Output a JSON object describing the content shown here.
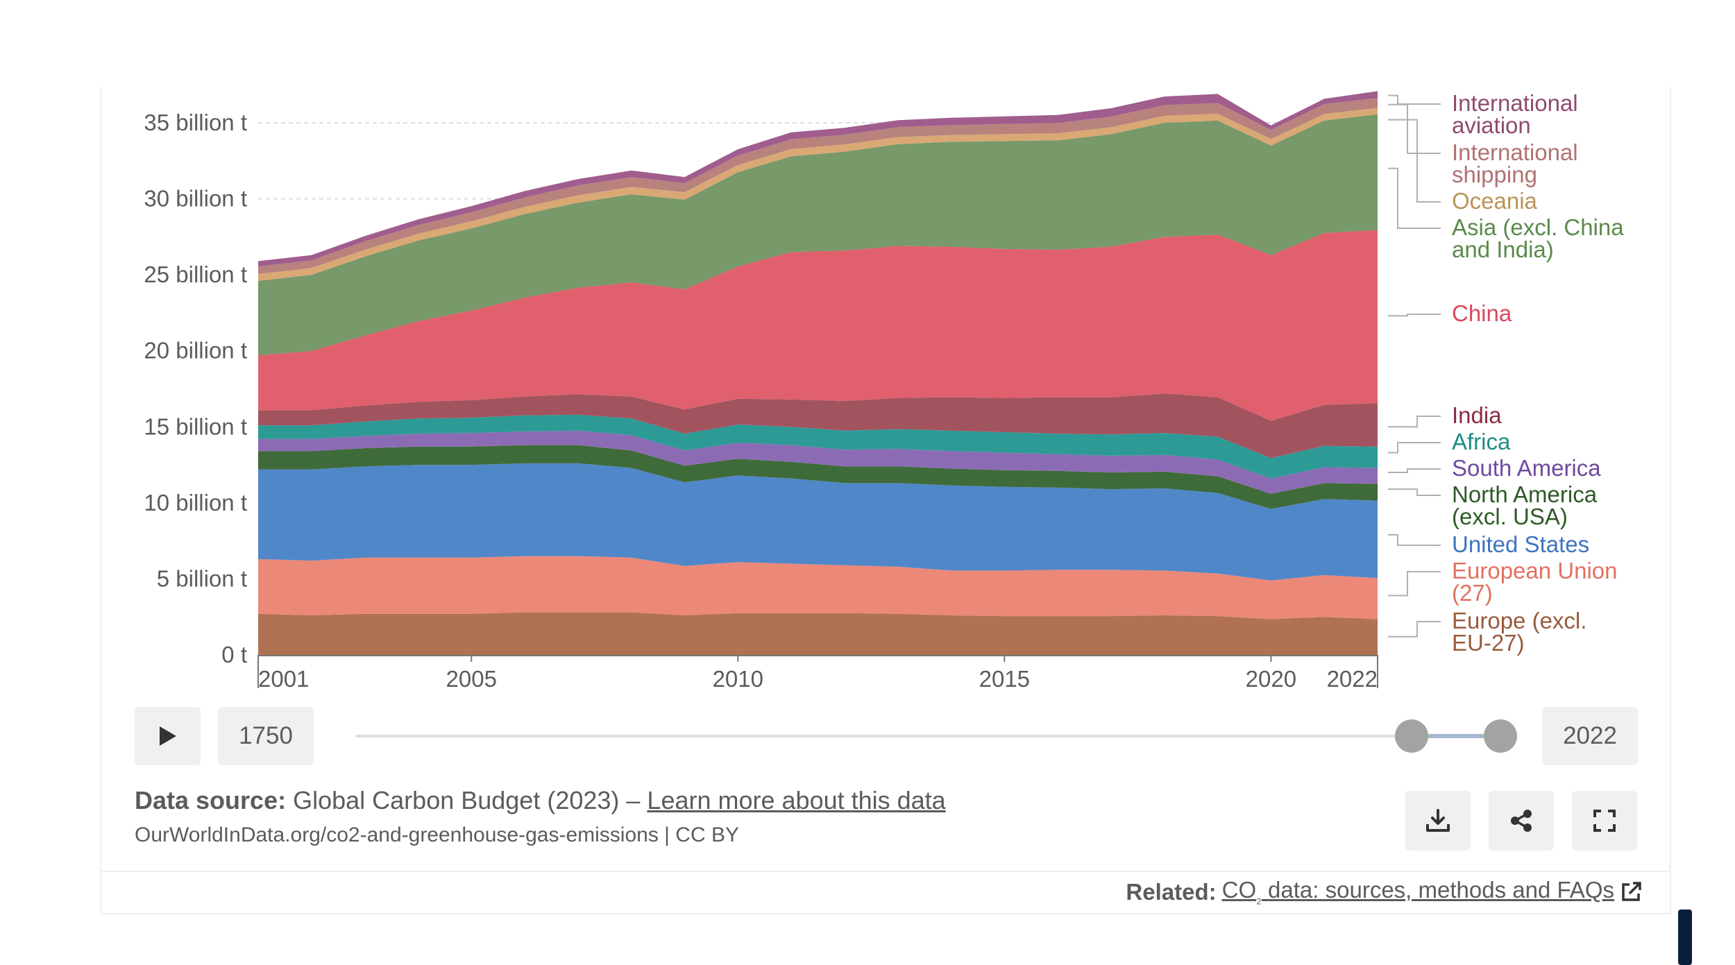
{
  "chart_data": {
    "type": "area",
    "stacked": true,
    "unit": "t",
    "x": [
      2001,
      2002,
      2003,
      2004,
      2005,
      2006,
      2007,
      2008,
      2009,
      2010,
      2011,
      2012,
      2013,
      2014,
      2015,
      2016,
      2017,
      2018,
      2019,
      2020,
      2021,
      2022
    ],
    "series": [
      {
        "name": "Europe (excl. EU-27)",
        "label": "Europe (excl. EU-27)",
        "color": "#b07252",
        "values": [
          2.7,
          2.6,
          2.7,
          2.7,
          2.7,
          2.8,
          2.8,
          2.8,
          2.6,
          2.75,
          2.75,
          2.75,
          2.7,
          2.6,
          2.55,
          2.55,
          2.55,
          2.6,
          2.55,
          2.35,
          2.5,
          2.35
        ]
      },
      {
        "name": "European Union (27)",
        "label": "European Union (27)",
        "color": "#eb8878",
        "values": [
          3.6,
          3.6,
          3.7,
          3.7,
          3.7,
          3.7,
          3.7,
          3.6,
          3.25,
          3.35,
          3.25,
          3.15,
          3.1,
          2.95,
          3.0,
          3.05,
          3.05,
          2.95,
          2.8,
          2.55,
          2.75,
          2.7
        ]
      },
      {
        "name": "United States",
        "label": "United States",
        "color": "#5087c9",
        "values": [
          5.9,
          6.0,
          6.0,
          6.1,
          6.1,
          6.1,
          6.1,
          5.9,
          5.5,
          5.7,
          5.6,
          5.4,
          5.5,
          5.6,
          5.5,
          5.4,
          5.3,
          5.4,
          5.3,
          4.7,
          5.0,
          5.1
        ]
      },
      {
        "name": "North America (excl. USA)",
        "label": "North America (excl. USA)",
        "color": "#3f6b3a",
        "values": [
          1.2,
          1.2,
          1.2,
          1.2,
          1.2,
          1.2,
          1.2,
          1.15,
          1.1,
          1.1,
          1.1,
          1.1,
          1.1,
          1.1,
          1.1,
          1.1,
          1.1,
          1.1,
          1.1,
          1.0,
          1.05,
          1.1
        ]
      },
      {
        "name": "South America",
        "label": "South America",
        "color": "#8c6bb5",
        "values": [
          0.8,
          0.8,
          0.8,
          0.85,
          0.9,
          0.9,
          0.95,
          1.0,
          1.0,
          1.05,
          1.1,
          1.1,
          1.15,
          1.15,
          1.15,
          1.1,
          1.1,
          1.1,
          1.1,
          1.0,
          1.05,
          1.05
        ]
      },
      {
        "name": "Africa",
        "label": "Africa",
        "color": "#2d9a96",
        "values": [
          0.9,
          0.9,
          0.95,
          1.0,
          1.0,
          1.05,
          1.05,
          1.1,
          1.1,
          1.2,
          1.2,
          1.25,
          1.3,
          1.35,
          1.35,
          1.35,
          1.4,
          1.45,
          1.5,
          1.35,
          1.4,
          1.4
        ]
      },
      {
        "name": "India",
        "label": "India",
        "color": "#a2545e",
        "values": [
          1.0,
          1.0,
          1.05,
          1.1,
          1.15,
          1.25,
          1.35,
          1.45,
          1.6,
          1.7,
          1.8,
          1.95,
          2.05,
          2.2,
          2.25,
          2.4,
          2.45,
          2.6,
          2.6,
          2.45,
          2.7,
          2.85
        ]
      },
      {
        "name": "China",
        "label": "China",
        "color": "#e0606e",
        "values": [
          3.6,
          3.9,
          4.6,
          5.3,
          5.9,
          6.5,
          7.0,
          7.5,
          7.9,
          8.7,
          9.7,
          9.9,
          10.0,
          9.9,
          9.8,
          9.7,
          9.9,
          10.3,
          10.7,
          10.9,
          11.3,
          11.4
        ]
      },
      {
        "name": "Asia (excl. China and India)",
        "label": "Asia (excl. China and India)",
        "color": "#78996a",
        "values": [
          4.9,
          5.0,
          5.2,
          5.3,
          5.4,
          5.5,
          5.6,
          5.8,
          5.9,
          6.2,
          6.3,
          6.5,
          6.7,
          6.9,
          7.1,
          7.2,
          7.4,
          7.5,
          7.5,
          7.2,
          7.4,
          7.6
        ]
      },
      {
        "name": "Oceania",
        "label": "Oceania",
        "color": "#d9a875",
        "values": [
          0.45,
          0.45,
          0.45,
          0.45,
          0.47,
          0.47,
          0.48,
          0.48,
          0.48,
          0.47,
          0.47,
          0.47,
          0.46,
          0.45,
          0.45,
          0.46,
          0.46,
          0.46,
          0.45,
          0.43,
          0.43,
          0.43
        ]
      },
      {
        "name": "International shipping",
        "label": "International shipping",
        "color": "#b8827d",
        "values": [
          0.5,
          0.5,
          0.55,
          0.57,
          0.6,
          0.62,
          0.65,
          0.65,
          0.6,
          0.62,
          0.65,
          0.65,
          0.65,
          0.65,
          0.67,
          0.68,
          0.7,
          0.7,
          0.7,
          0.6,
          0.65,
          0.65
        ]
      },
      {
        "name": "International aviation",
        "label": "International aviation",
        "color": "#a05d8e",
        "values": [
          0.35,
          0.35,
          0.35,
          0.38,
          0.4,
          0.42,
          0.42,
          0.43,
          0.4,
          0.42,
          0.45,
          0.45,
          0.46,
          0.48,
          0.5,
          0.52,
          0.55,
          0.57,
          0.6,
          0.3,
          0.35,
          0.45
        ]
      }
    ],
    "yticks": [
      {
        "value": 0,
        "label": "0 t"
      },
      {
        "value": 5,
        "label": "5 billion t"
      },
      {
        "value": 10,
        "label": "10 billion t"
      },
      {
        "value": 15,
        "label": "15 billion t"
      },
      {
        "value": 20,
        "label": "20 billion t"
      },
      {
        "value": 25,
        "label": "25 billion t"
      },
      {
        "value": 30,
        "label": "30 billion t"
      },
      {
        "value": 35,
        "label": "35 billion t"
      }
    ],
    "xticks": [
      {
        "value": 2001,
        "label": "2001"
      },
      {
        "value": 2005,
        "label": "2005"
      },
      {
        "value": 2010,
        "label": "2010"
      },
      {
        "value": 2015,
        "label": "2015"
      },
      {
        "value": 2020,
        "label": "2020"
      },
      {
        "value": 2022,
        "label": "2022"
      }
    ],
    "ylim": [
      0,
      35
    ],
    "xlim": [
      2001,
      2022
    ],
    "grid": true,
    "legend_placement": "right",
    "legend": [
      {
        "lines": [
          "International",
          "aviation"
        ],
        "color": "#8f4a6e"
      },
      {
        "lines": [
          "International",
          "shipping"
        ],
        "color": "#b07272"
      },
      {
        "lines": [
          "Oceania"
        ],
        "color": "#b89458"
      },
      {
        "lines": [
          "Asia (excl. China",
          "and India)"
        ],
        "color": "#5a8a4a"
      },
      {
        "lines": [
          "China"
        ],
        "color": "#d94a5e"
      },
      {
        "lines": [
          "India"
        ],
        "color": "#8a2d45"
      },
      {
        "lines": [
          "Africa"
        ],
        "color": "#1e8c86"
      },
      {
        "lines": [
          "South America"
        ],
        "color": "#6e4a9e"
      },
      {
        "lines": [
          "North America",
          "(excl. USA)"
        ],
        "color": "#2e5a26"
      },
      {
        "lines": [
          "United States"
        ],
        "color": "#3f74c0"
      },
      {
        "lines": [
          "European Union",
          "(27)"
        ],
        "color": "#e27060"
      },
      {
        "lines": [
          "Europe (excl.",
          "EU-27)"
        ],
        "color": "#9a5a3c"
      }
    ]
  },
  "timeline": {
    "start_year": "1750",
    "end_year": "2022",
    "play_icon": "play-icon"
  },
  "footer": {
    "source_label": "Data source:",
    "source_text": "Global Carbon Budget (2023) – ",
    "learn_more": "Learn more about this data",
    "url_text": "OurWorldInData.org/co2-and-greenhouse-gas-emissions | CC BY",
    "related_label": "Related:",
    "related_link_prefix": "CO",
    "related_link_sub": "₂",
    "related_link_suffix": " data: sources, methods and FAQs"
  },
  "icons": {
    "download": "download-icon",
    "share": "share-icon",
    "fullscreen": "fullscreen-icon",
    "external_link": "external-link-icon"
  }
}
